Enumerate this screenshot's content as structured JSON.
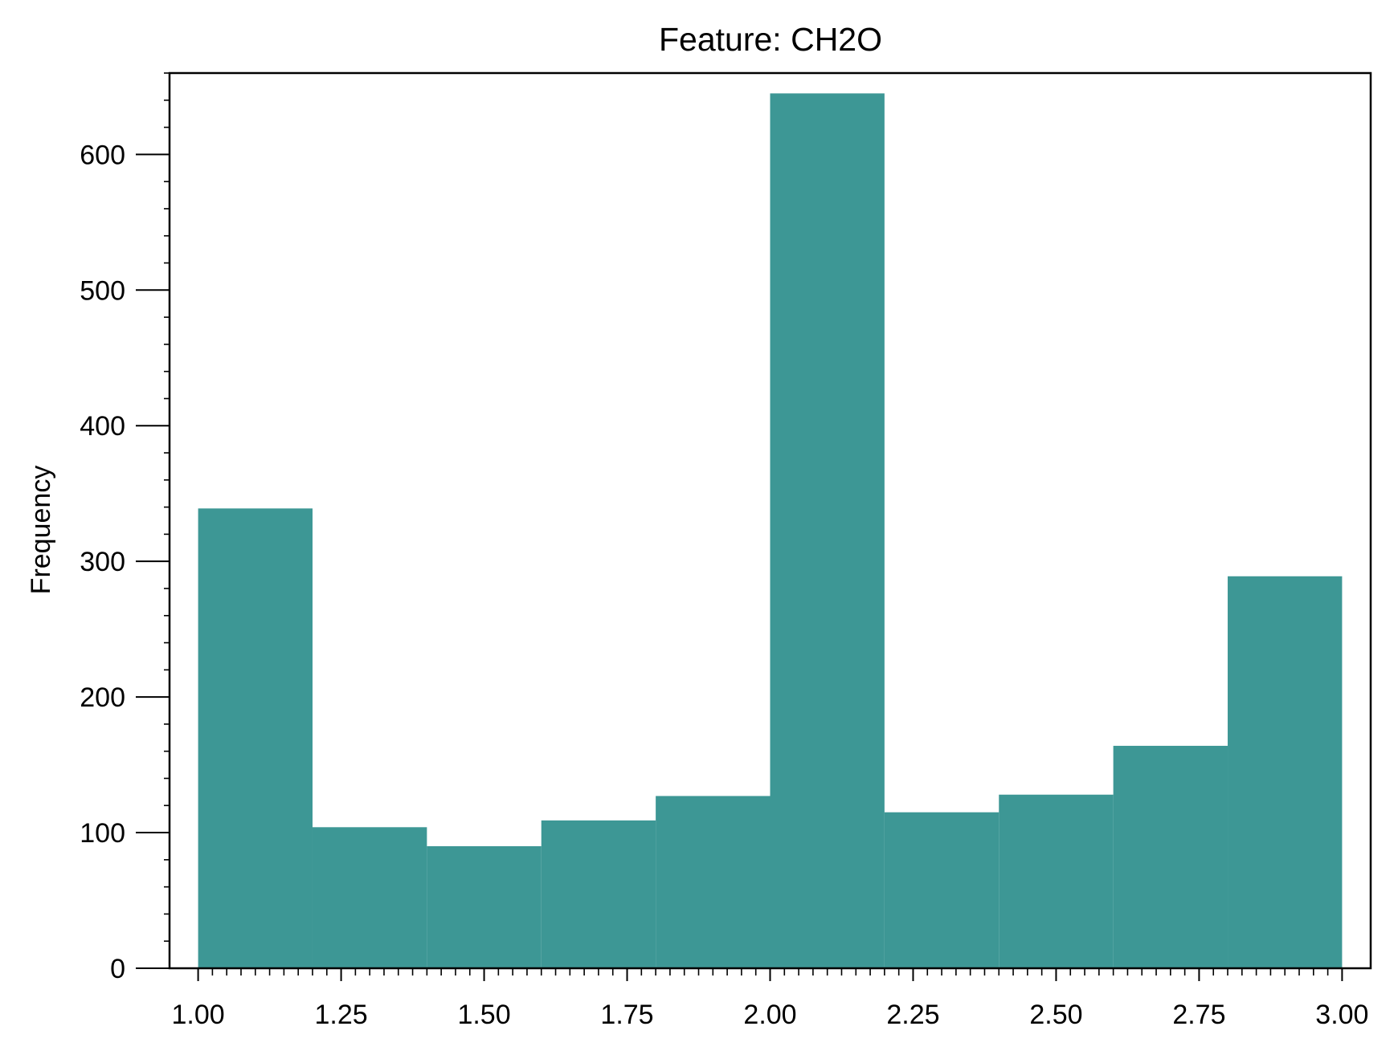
{
  "chart_data": {
    "type": "bar",
    "title": "Feature: CH2O",
    "xlabel": "",
    "ylabel": "Frequency",
    "bins": [
      {
        "x0": 1.0,
        "x1": 1.2,
        "count": 339
      },
      {
        "x0": 1.2,
        "x1": 1.4,
        "count": 104
      },
      {
        "x0": 1.4,
        "x1": 1.6,
        "count": 90
      },
      {
        "x0": 1.6,
        "x1": 1.8,
        "count": 109
      },
      {
        "x0": 1.8,
        "x1": 2.0,
        "count": 127
      },
      {
        "x0": 2.0,
        "x1": 2.2,
        "count": 645
      },
      {
        "x0": 2.2,
        "x1": 2.4,
        "count": 115
      },
      {
        "x0": 2.4,
        "x1": 2.6,
        "count": 128
      },
      {
        "x0": 2.6,
        "x1": 2.8,
        "count": 164
      },
      {
        "x0": 2.8,
        "x1": 3.0,
        "count": 289
      }
    ],
    "xlim": [
      0.95,
      3.05
    ],
    "ylim": [
      0,
      660
    ],
    "x_ticks": [
      "1.00",
      "1.25",
      "1.50",
      "1.75",
      "2.00",
      "2.25",
      "2.50",
      "2.75",
      "3.00"
    ],
    "y_ticks": [
      "0",
      "100",
      "200",
      "300",
      "400",
      "500",
      "600"
    ],
    "bar_color": "#3d9795",
    "grid": false,
    "legend": "none"
  }
}
